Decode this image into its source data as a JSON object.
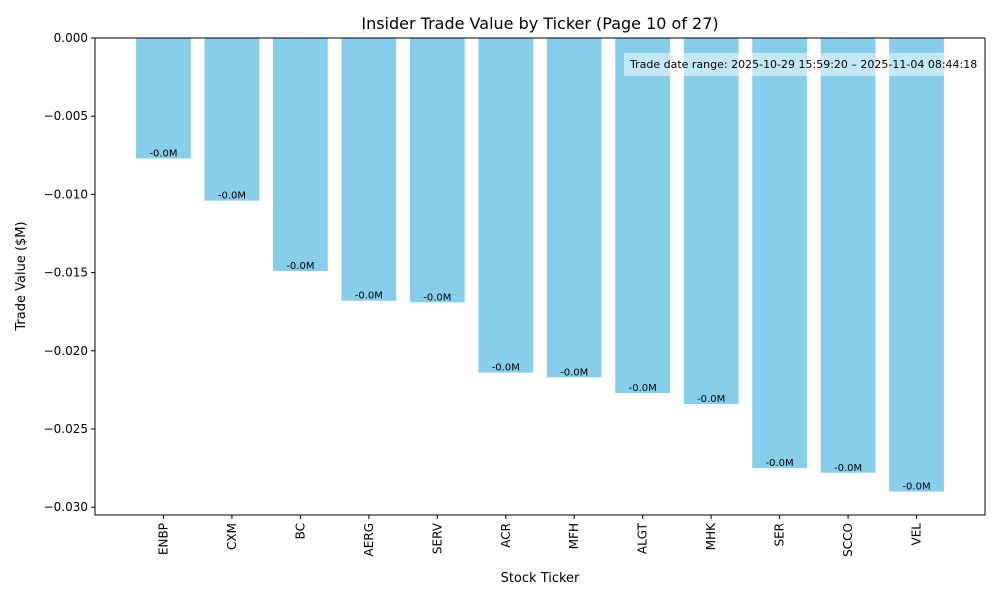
{
  "chart_data": {
    "type": "bar",
    "title": "Insider Trade Value by Ticker (Page 10 of 27)",
    "xlabel": "Stock Ticker",
    "ylabel": "Trade Value ($M)",
    "categories": [
      "ENBP",
      "CXM",
      "BC",
      "AERG",
      "SERV",
      "ACR",
      "MFH",
      "ALGT",
      "MHK",
      "SER",
      "SCCO",
      "VEL"
    ],
    "values": [
      -0.0077,
      -0.0104,
      -0.0149,
      -0.0168,
      -0.0169,
      -0.0214,
      -0.0217,
      -0.0227,
      -0.0234,
      -0.0275,
      -0.0278,
      -0.029
    ],
    "data_labels": [
      "-0.0M",
      "-0.0M",
      "-0.0M",
      "-0.0M",
      "-0.0M",
      "-0.0M",
      "-0.0M",
      "-0.0M",
      "-0.0M",
      "-0.0M",
      "-0.0M",
      "-0.0M"
    ],
    "ylim": [
      -0.0305,
      0
    ],
    "yticks": [
      0,
      -0.005,
      -0.01,
      -0.015,
      -0.02,
      -0.025,
      -0.03
    ],
    "ytick_labels": [
      "0.000",
      "−0.005",
      "−0.010",
      "−0.015",
      "−0.020",
      "−0.025",
      "−0.030"
    ],
    "annotation": "Trade date range: 2025-10-29 15:59:20 – 2025-11-04 08:44:18",
    "grid": false,
    "bar_color": "#87CEEB"
  }
}
